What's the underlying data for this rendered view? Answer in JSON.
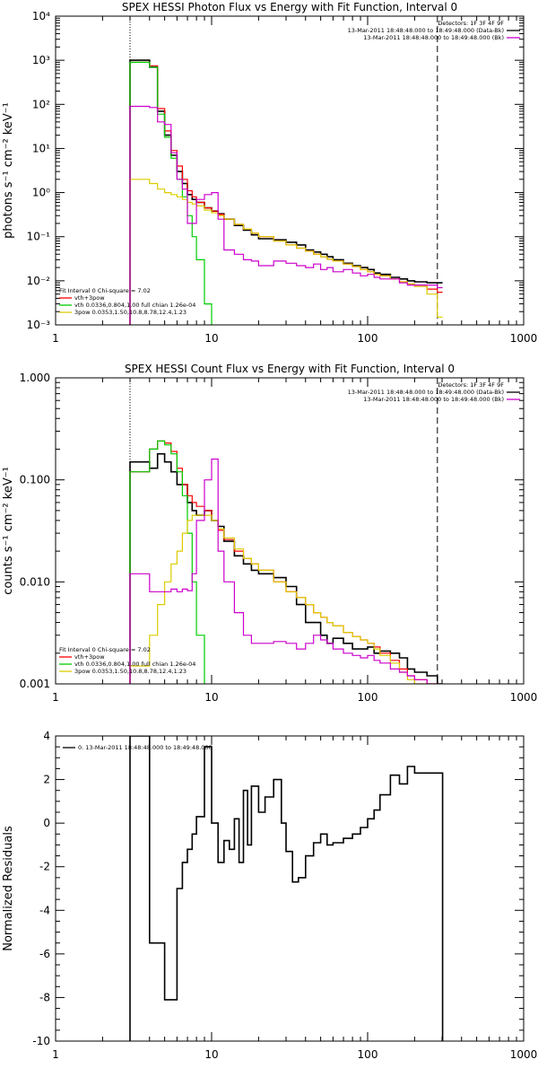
{
  "chart_data": [
    {
      "type": "line",
      "title": "SPEX HESSI Photon Flux vs Energy with Fit Function, Interval 0",
      "ylabel": "photons s⁻¹ cm⁻² keV⁻¹",
      "xlabel": "",
      "xscale": "log",
      "yscale": "log",
      "xlim": [
        1,
        1000
      ],
      "ylim": [
        0.001,
        10000
      ],
      "xticks": [
        "1",
        "10",
        "100",
        "1000"
      ],
      "yticks": [
        "10⁻³",
        "10⁻²",
        "10⁻¹",
        "10⁰",
        "10¹",
        "10²",
        "10³",
        "10⁴"
      ],
      "vlines": [
        {
          "x": 3,
          "style": "dotted"
        },
        {
          "x": 280,
          "style": "dashed"
        }
      ],
      "header_right": [
        "Detectors: 1F 3F 4F 9F",
        "13-Mar-2011 18:48:48.000 to 18:49:48.000 (Data-Bk)",
        "13-Mar-2011 18:48:48.000 to 18:49:48.000 (Bk)"
      ],
      "legend_left": [
        "Fit Interval 0   Chi-square = 7.02",
        "vth+3pow",
        "vth 0.0336,0.804,1.00  full chian 1.26e-04",
        "3pow 0.0353,1.50,10.8,8.78,12.4,1.23"
      ],
      "series": [
        {
          "name": "Data-Bk",
          "color": "#000000",
          "x": [
            3,
            3.5,
            4,
            4.5,
            5,
            5.5,
            6,
            6.5,
            7,
            7.5,
            8,
            9,
            10,
            11,
            12,
            14,
            16,
            18,
            20,
            25,
            30,
            35,
            40,
            45,
            50,
            55,
            60,
            70,
            80,
            90,
            100,
            110,
            120,
            140,
            160,
            180,
            200,
            240,
            280
          ],
          "y": [
            1000,
            1000,
            700,
            70,
            20,
            7,
            3,
            1.6,
            0.9,
            0.7,
            0.6,
            0.45,
            0.38,
            0.33,
            0.25,
            0.18,
            0.14,
            0.11,
            0.09,
            0.085,
            0.075,
            0.065,
            0.05,
            0.045,
            0.04,
            0.035,
            0.03,
            0.025,
            0.022,
            0.02,
            0.018,
            0.015,
            0.014,
            0.012,
            0.011,
            0.01,
            0.0095,
            0.009,
            0.009
          ]
        },
        {
          "name": "vth+3pow",
          "color": "#ff0000",
          "x": [
            3,
            3.5,
            4,
            4.5,
            5,
            5.5,
            6,
            6.5,
            7,
            7.5,
            8,
            9,
            10,
            11,
            12,
            14,
            16,
            18,
            20,
            25,
            30,
            35,
            40,
            45,
            50,
            55,
            60,
            70,
            80,
            90,
            100,
            110,
            120,
            140,
            160,
            180,
            200,
            240,
            280
          ],
          "y": [
            900,
            900,
            750,
            80,
            25,
            9,
            4,
            2,
            1.1,
            0.8,
            0.6,
            0.45,
            0.38,
            0.32,
            0.25,
            0.19,
            0.15,
            0.12,
            0.1,
            0.08,
            0.065,
            0.055,
            0.047,
            0.04,
            0.035,
            0.031,
            0.028,
            0.024,
            0.021,
            0.018,
            0.016,
            0.014,
            0.013,
            0.011,
            0.0095,
            0.0085,
            0.0075,
            0.0065,
            0.0055
          ]
        },
        {
          "name": "vth",
          "color": "#00cc00",
          "x": [
            3,
            3.5,
            4,
            4.5,
            5,
            5.5,
            6,
            6.5,
            7,
            7.5,
            8,
            9,
            10
          ],
          "y": [
            900,
            900,
            700,
            60,
            18,
            6,
            2,
            0.8,
            0.3,
            0.1,
            0.03,
            0.003,
            0.0009
          ]
        },
        {
          "name": "3pow",
          "color": "#ddcc00",
          "x": [
            3,
            3.5,
            4,
            4.5,
            5,
            5.5,
            6,
            6.5,
            7,
            7.5,
            8,
            9,
            10,
            11,
            12,
            14,
            16,
            18,
            20,
            25,
            30,
            35,
            40,
            45,
            50,
            55,
            60,
            70,
            80,
            90,
            100,
            110,
            120,
            140,
            160,
            180,
            200,
            240,
            280
          ],
          "y": [
            2,
            2,
            1.6,
            1.2,
            1,
            0.9,
            0.8,
            0.7,
            0.6,
            0.55,
            0.5,
            0.4,
            0.35,
            0.3,
            0.25,
            0.19,
            0.15,
            0.12,
            0.1,
            0.08,
            0.065,
            0.055,
            0.047,
            0.04,
            0.035,
            0.031,
            0.028,
            0.024,
            0.021,
            0.018,
            0.016,
            0.014,
            0.013,
            0.011,
            0.0095,
            0.0085,
            0.0075,
            0.005,
            0.0015
          ]
        },
        {
          "name": "Bk",
          "color": "#cc00cc",
          "x": [
            3,
            3.5,
            4,
            4.5,
            5,
            5.5,
            6,
            6.5,
            7,
            7.5,
            8,
            9,
            10,
            11,
            12,
            14,
            16,
            18,
            20,
            25,
            30,
            35,
            40,
            45,
            50,
            55,
            60,
            70,
            80,
            90,
            100,
            110,
            120,
            140,
            160,
            180,
            200,
            240,
            280
          ],
          "y": [
            90,
            90,
            85,
            40,
            35,
            8,
            2,
            1.2,
            0.2,
            0.2,
            0.7,
            0.9,
            1,
            0.25,
            0.05,
            0.04,
            0.03,
            0.028,
            0.022,
            0.028,
            0.025,
            0.022,
            0.02,
            0.024,
            0.018,
            0.02,
            0.016,
            0.018,
            0.015,
            0.013,
            0.014,
            0.012,
            0.011,
            0.011,
            0.009,
            0.008,
            0.008,
            0.008,
            0.007
          ]
        }
      ]
    },
    {
      "type": "line",
      "title": "SPEX HESSI Count Flux vs Energy with Fit Function, Interval 0",
      "ylabel": "counts s⁻¹ cm⁻² keV⁻¹",
      "xlabel": "",
      "xscale": "log",
      "yscale": "log",
      "xlim": [
        1,
        1000
      ],
      "ylim": [
        0.001,
        1.0
      ],
      "xticks": [
        "1",
        "10",
        "100",
        "1000"
      ],
      "yticks": [
        "0.001",
        "0.010",
        "0.100",
        "1.000"
      ],
      "vlines": [
        {
          "x": 3,
          "style": "dotted"
        },
        {
          "x": 280,
          "style": "dashed"
        }
      ],
      "header_right": [
        "Detectors: 1F 3F 4F 9F",
        "13-Mar-2011 18:48:48.000 to 18:49:48.000 (Data-Bk)",
        "13-Mar-2011 18:48:48.000 to 18:49:48.000 (Bk)"
      ],
      "legend_left": [
        "Fit Interval 0   Chi-square = 7.02",
        "vth+3pow",
        "vth 0.0336,0.804,1.00  full chian 1.26e-04",
        "3pow 0.0353,1.50,10.8,8.78,12.4,1.23"
      ],
      "series": [
        {
          "name": "Data-Bk",
          "color": "#000000",
          "x": [
            3,
            3.5,
            4,
            4.5,
            5,
            5.5,
            6,
            6.5,
            7,
            7.5,
            8,
            9,
            10,
            11,
            12,
            14,
            16,
            18,
            20,
            25,
            30,
            35,
            40,
            45,
            50,
            55,
            60,
            70,
            80,
            90,
            100,
            110,
            120,
            140,
            160,
            180,
            200,
            240,
            280
          ],
          "y": [
            0.15,
            0.15,
            0.13,
            0.18,
            0.15,
            0.12,
            0.09,
            0.09,
            0.06,
            0.05,
            0.045,
            0.05,
            0.04,
            0.035,
            0.025,
            0.018,
            0.015,
            0.013,
            0.012,
            0.011,
            0.009,
            0.006,
            0.004,
            0.004,
            0.003,
            0.0025,
            0.0028,
            0.0025,
            0.0022,
            0.0022,
            0.0023,
            0.002,
            0.0021,
            0.002,
            0.0018,
            0.0014,
            0.0013,
            0.0012,
            0.001
          ]
        },
        {
          "name": "vth+3pow",
          "color": "#ff0000",
          "x": [
            3,
            3.5,
            4,
            4.5,
            5,
            5.5,
            6,
            6.5,
            7,
            7.5,
            8,
            9,
            10,
            11,
            12,
            14,
            16,
            18,
            20,
            25,
            30,
            35,
            40,
            45,
            50,
            55,
            60,
            70,
            80,
            90,
            100,
            110,
            120,
            140,
            160,
            180,
            200,
            240,
            280
          ],
          "y": [
            0.12,
            0.12,
            0.2,
            0.24,
            0.23,
            0.19,
            0.13,
            0.09,
            0.07,
            0.06,
            0.055,
            0.05,
            0.04,
            0.032,
            0.026,
            0.02,
            0.017,
            0.015,
            0.013,
            0.01,
            0.008,
            0.007,
            0.006,
            0.005,
            0.0045,
            0.004,
            0.0037,
            0.0032,
            0.0029,
            0.0027,
            0.0025,
            0.0023,
            0.002,
            0.0017,
            0.0014,
            0.0012,
            0.0011,
            0.001,
            0.0009
          ]
        },
        {
          "name": "vth",
          "color": "#00cc00",
          "x": [
            3,
            3.5,
            4,
            4.5,
            5,
            5.5,
            6,
            6.5,
            7,
            7.5,
            8,
            9
          ],
          "y": [
            0.12,
            0.12,
            0.2,
            0.24,
            0.22,
            0.18,
            0.12,
            0.07,
            0.03,
            0.01,
            0.003,
            0.0008
          ]
        },
        {
          "name": "3pow",
          "color": "#ddcc00",
          "x": [
            3,
            3.5,
            4,
            4.5,
            5,
            5.5,
            6,
            6.5,
            7,
            7.5,
            8,
            9,
            10,
            11,
            12,
            14,
            16,
            18,
            20,
            25,
            30,
            35,
            40,
            45,
            50,
            55,
            60,
            70,
            80,
            90,
            100,
            110,
            120,
            140,
            160,
            180,
            200,
            240,
            280
          ],
          "y": [
            0.0015,
            0.0015,
            0.003,
            0.006,
            0.01,
            0.015,
            0.02,
            0.03,
            0.04,
            0.045,
            0.045,
            0.045,
            0.04,
            0.033,
            0.027,
            0.021,
            0.017,
            0.015,
            0.013,
            0.01,
            0.008,
            0.007,
            0.006,
            0.005,
            0.0045,
            0.004,
            0.0037,
            0.0032,
            0.0029,
            0.0027,
            0.0025,
            0.0022,
            0.0019,
            0.0016,
            0.0013,
            0.0011,
            0.001,
            0.0009,
            0.0008
          ]
        },
        {
          "name": "Bk",
          "color": "#cc00cc",
          "x": [
            3,
            3.5,
            4,
            4.5,
            5,
            5.5,
            6,
            6.5,
            7,
            7.5,
            8,
            9,
            10,
            11,
            12,
            14,
            16,
            18,
            20,
            25,
            30,
            35,
            40,
            45,
            50,
            55,
            60,
            70,
            80,
            90,
            100,
            110,
            120,
            140,
            160,
            180,
            200,
            240,
            280
          ],
          "y": [
            0.012,
            0.012,
            0.008,
            0.008,
            0.008,
            0.0085,
            0.008,
            0.0085,
            0.0082,
            0.012,
            0.04,
            0.1,
            0.16,
            0.02,
            0.01,
            0.005,
            0.003,
            0.0025,
            0.0025,
            0.0026,
            0.0025,
            0.0022,
            0.0025,
            0.003,
            0.0027,
            0.0025,
            0.0022,
            0.002,
            0.0019,
            0.0018,
            0.0019,
            0.0017,
            0.0016,
            0.0014,
            0.0013,
            0.0012,
            0.0011,
            0.001,
            0.0009
          ]
        }
      ]
    },
    {
      "type": "line",
      "title": "",
      "ylabel": "Normalized Residuals",
      "xlabel": "",
      "xscale": "log",
      "yscale": "linear",
      "xlim": [
        1,
        1000
      ],
      "ylim": [
        -10,
        4
      ],
      "xticks": [
        "1",
        "10",
        "100",
        "1000"
      ],
      "yticks": [
        "-10",
        "-8",
        "-6",
        "-4",
        "-2",
        "0",
        "2",
        "4"
      ],
      "legend_left": [
        "0. 13-Mar-2011 18:48:48.000 to 18:49:48.000"
      ],
      "series": [
        {
          "name": "0. 13-Mar-2011 18:48:48.000 to 18:49:48.000",
          "color": "#000000",
          "x": [
            3,
            3.5,
            4,
            4.5,
            5,
            5.5,
            6,
            6.5,
            7,
            7.5,
            8,
            9,
            10,
            11,
            12,
            13,
            14,
            15,
            16,
            17,
            18,
            20,
            22,
            25,
            28,
            30,
            33,
            36,
            40,
            45,
            50,
            55,
            60,
            70,
            80,
            90,
            100,
            110,
            120,
            140,
            160,
            180,
            200,
            240,
            280
          ],
          "y": [
            4,
            4,
            -5.5,
            -5.5,
            -8.1,
            -8.1,
            -3,
            -1.8,
            -1.2,
            -0.5,
            0.3,
            3.5,
            0,
            -1.8,
            -0.8,
            -1.2,
            0.2,
            -1.8,
            1.5,
            -1,
            1.7,
            0.5,
            1.2,
            2,
            0,
            -1.3,
            -2.7,
            -2.5,
            -1.5,
            -0.9,
            -0.5,
            -1,
            -0.9,
            -0.7,
            -0.5,
            -0.2,
            0.2,
            0.6,
            1.3,
            2.2,
            1.8,
            2.6,
            2.3,
            2.3,
            2.3
          ]
        }
      ]
    }
  ]
}
